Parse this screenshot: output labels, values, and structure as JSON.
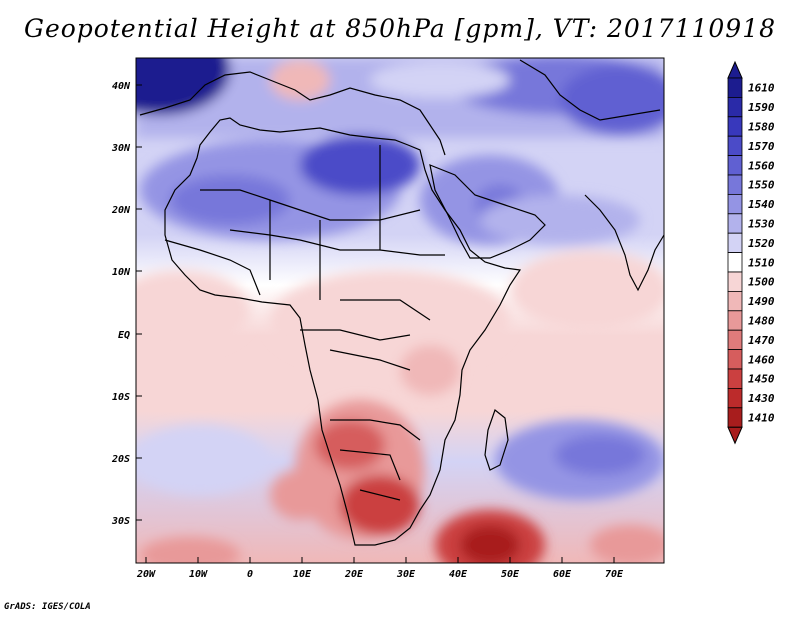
{
  "title": "Geopotential Height at 850hPa [gpm], VT: 2017110918",
  "credit": "GrADS: IGES/COLA",
  "map": {
    "lon_labels": [
      "20W",
      "10W",
      "0",
      "10E",
      "20E",
      "30E",
      "40E",
      "50E",
      "60E",
      "70E"
    ],
    "lat_labels": [
      "40N",
      "30N",
      "20N",
      "10N",
      "EQ",
      "10S",
      "20S",
      "30S"
    ]
  },
  "colorbar": {
    "levels": [
      "1610",
      "1590",
      "1580",
      "1570",
      "1560",
      "1550",
      "1540",
      "1530",
      "1520",
      "1510",
      "1500",
      "1490",
      "1480",
      "1470",
      "1460",
      "1450",
      "1430",
      "1410"
    ],
    "colors": [
      "#1c1c8f",
      "#2a2aa8",
      "#3838bc",
      "#4b4bc8",
      "#6060d2",
      "#7777da",
      "#9494e4",
      "#b2b2ec",
      "#d3d3f5",
      "#ffffff",
      "#f7d6d6",
      "#f0b8b8",
      "#e89999",
      "#df7b7b",
      "#d65d5d",
      "#cb4040",
      "#bc2b2b",
      "#a81d1d"
    ]
  }
}
